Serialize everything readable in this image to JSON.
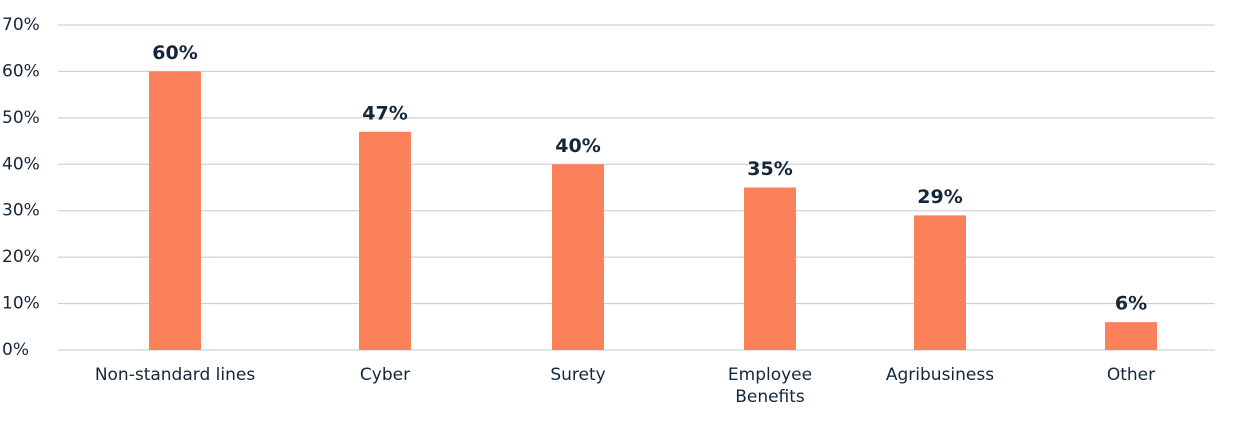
{
  "chart_data": {
    "type": "bar",
    "categories": [
      "Non-standard lines",
      "Cyber",
      "Surety",
      "Employee Benefits",
      "Agribusiness",
      "Other"
    ],
    "values": [
      60,
      47,
      40,
      35,
      29,
      6
    ],
    "value_labels": [
      "60%",
      "47%",
      "40%",
      "35%",
      "29%",
      "6%"
    ],
    "color": "#fa8159",
    "ylim": [
      0,
      70
    ],
    "yticks": [
      {
        "value": 0,
        "label": "0%"
      },
      {
        "value": 10,
        "label": "10%"
      },
      {
        "value": 20,
        "label": "20%"
      },
      {
        "value": 30,
        "label": "30%"
      },
      {
        "value": 40,
        "label": "40%"
      },
      {
        "value": 50,
        "label": "50%"
      },
      {
        "value": 60,
        "label": "60%"
      },
      {
        "value": 70,
        "label": "70%"
      }
    ],
    "grid": true
  }
}
